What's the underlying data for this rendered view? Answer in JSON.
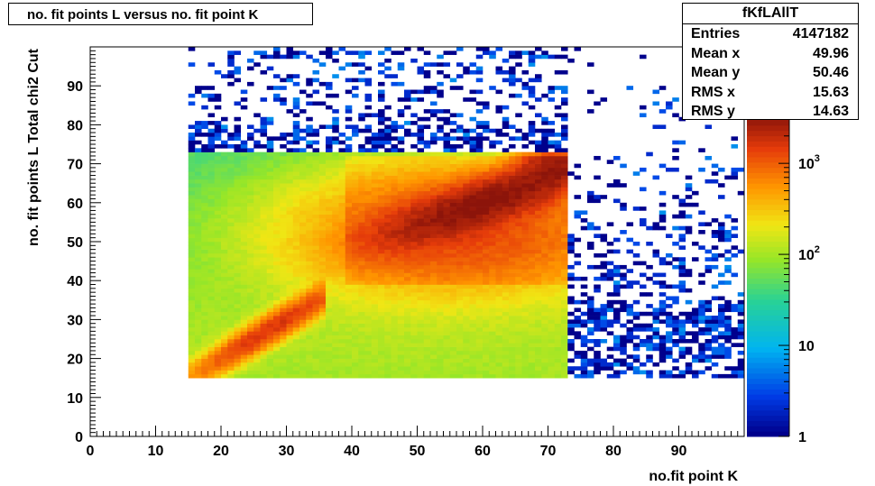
{
  "title": "no. fit points L versus no. fit point K",
  "stats": {
    "name": "fKfLAllT",
    "rows": [
      {
        "label": "Entries",
        "value": "4147182"
      },
      {
        "label": "Mean x",
        "value": "49.96"
      },
      {
        "label": "Mean y",
        "value": "50.46"
      },
      {
        "label": "RMS x",
        "value": "15.63"
      },
      {
        "label": "RMS y",
        "value": "14.63"
      }
    ]
  },
  "chart_data": {
    "type": "heatmap",
    "title": "no. fit points L versus no. fit point K",
    "xlabel": "no.fit point K",
    "ylabel": "no. fit points  L   Total chi2 Cut",
    "xlim": [
      0,
      100
    ],
    "ylim": [
      0,
      100
    ],
    "x_ticks": [
      "0",
      "10",
      "20",
      "30",
      "40",
      "50",
      "60",
      "70",
      "80",
      "90"
    ],
    "y_ticks": [
      "0",
      "10",
      "20",
      "30",
      "40",
      "50",
      "60",
      "70",
      "80",
      "90"
    ],
    "z_scale": "log",
    "z_range": [
      1,
      3000
    ],
    "z_ticks": [
      {
        "label": "1",
        "value": 1
      },
      {
        "label": "10",
        "value": 10
      },
      {
        "label": "10",
        "exp": "2",
        "value": 100
      },
      {
        "label": "10",
        "exp": "3",
        "value": 1000
      }
    ],
    "dense_region": {
      "x": [
        15,
        73
      ],
      "y": [
        15,
        73
      ]
    },
    "ridges": [
      {
        "from": [
          15,
          15
        ],
        "to": [
          32,
          32
        ],
        "peak": 1500
      },
      {
        "from": [
          35,
          45
        ],
        "to": [
          72,
          72
        ],
        "peak": 2500
      }
    ],
    "sparse_region": {
      "x": [
        15,
        100
      ],
      "y": [
        15,
        100
      ],
      "counts": "1-5"
    }
  }
}
